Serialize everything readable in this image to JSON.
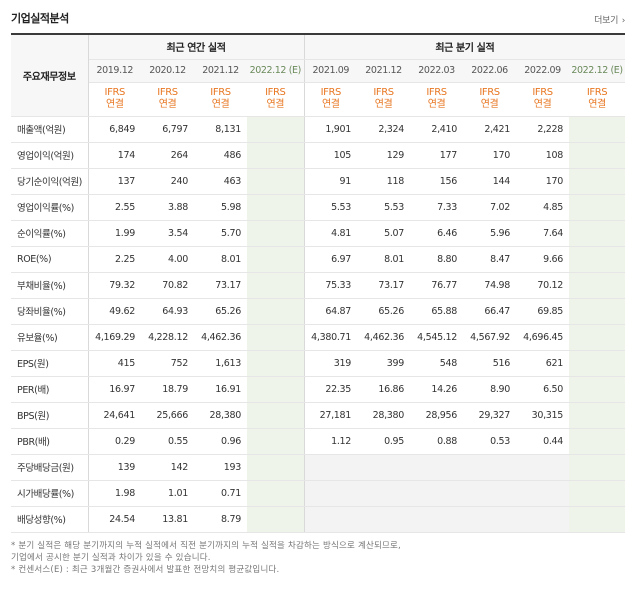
{
  "header": {
    "title": "기업실적분석",
    "more_label": "더보기",
    "more_icon": "chevron-right-icon"
  },
  "table": {
    "row_header_label": "주요재무정보",
    "annual_label": "최근 연간 실적",
    "quarter_label": "최근 분기 실적",
    "annual_periods": [
      "2019.12",
      "2020.12",
      "2021.12",
      "2022.12 (E)"
    ],
    "quarter_periods": [
      "2021.09",
      "2021.12",
      "2022.03",
      "2022.06",
      "2022.09",
      "2022.12 (E)"
    ],
    "ifrs_top": "IFRS",
    "ifrs_bottom": "연결",
    "rows": [
      {
        "label": "매출액(억원)",
        "annual": [
          "6,849",
          "6,797",
          "8,131",
          ""
        ],
        "quarter": [
          "1,901",
          "2,324",
          "2,410",
          "2,421",
          "2,228",
          ""
        ]
      },
      {
        "label": "영업이익(억원)",
        "annual": [
          "174",
          "264",
          "486",
          ""
        ],
        "quarter": [
          "105",
          "129",
          "177",
          "170",
          "108",
          ""
        ]
      },
      {
        "label": "당기순이익(억원)",
        "annual": [
          "137",
          "240",
          "463",
          ""
        ],
        "quarter": [
          "91",
          "118",
          "156",
          "144",
          "170",
          ""
        ]
      },
      {
        "label": "영업이익률(%)",
        "annual": [
          "2.55",
          "3.88",
          "5.98",
          ""
        ],
        "quarter": [
          "5.53",
          "5.53",
          "7.33",
          "7.02",
          "4.85",
          ""
        ]
      },
      {
        "label": "순이익률(%)",
        "annual": [
          "1.99",
          "3.54",
          "5.70",
          ""
        ],
        "quarter": [
          "4.81",
          "5.07",
          "6.46",
          "5.96",
          "7.64",
          ""
        ]
      },
      {
        "label": "ROE(%)",
        "annual": [
          "2.25",
          "4.00",
          "8.01",
          ""
        ],
        "quarter": [
          "6.97",
          "8.01",
          "8.80",
          "8.47",
          "9.66",
          ""
        ]
      },
      {
        "label": "부채비율(%)",
        "annual": [
          "79.32",
          "70.82",
          "73.17",
          ""
        ],
        "quarter": [
          "75.33",
          "73.17",
          "76.77",
          "74.98",
          "70.12",
          ""
        ]
      },
      {
        "label": "당좌비율(%)",
        "annual": [
          "49.62",
          "64.93",
          "65.26",
          ""
        ],
        "quarter": [
          "64.87",
          "65.26",
          "65.88",
          "66.47",
          "69.85",
          ""
        ]
      },
      {
        "label": "유보율(%)",
        "annual": [
          "4,169.29",
          "4,228.12",
          "4,462.36",
          ""
        ],
        "quarter": [
          "4,380.71",
          "4,462.36",
          "4,545.12",
          "4,567.92",
          "4,696.45",
          ""
        ]
      },
      {
        "label": "EPS(원)",
        "annual": [
          "415",
          "752",
          "1,613",
          ""
        ],
        "quarter": [
          "319",
          "399",
          "548",
          "516",
          "621",
          ""
        ]
      },
      {
        "label": "PER(배)",
        "annual": [
          "16.97",
          "18.79",
          "16.91",
          ""
        ],
        "quarter": [
          "22.35",
          "16.86",
          "14.26",
          "8.90",
          "6.50",
          ""
        ]
      },
      {
        "label": "BPS(원)",
        "annual": [
          "24,641",
          "25,666",
          "28,380",
          ""
        ],
        "quarter": [
          "27,181",
          "28,380",
          "28,956",
          "29,327",
          "30,315",
          ""
        ]
      },
      {
        "label": "PBR(배)",
        "annual": [
          "0.29",
          "0.55",
          "0.96",
          ""
        ],
        "quarter": [
          "1.12",
          "0.95",
          "0.88",
          "0.53",
          "0.44",
          ""
        ]
      },
      {
        "label": "주당배당금(원)",
        "annual": [
          "139",
          "142",
          "193",
          ""
        ],
        "quarter": [
          "",
          "",
          "",
          "",
          "",
          ""
        ]
      },
      {
        "label": "시가배당률(%)",
        "annual": [
          "1.98",
          "1.01",
          "0.71",
          ""
        ],
        "quarter": [
          "",
          "",
          "",
          "",
          "",
          ""
        ]
      },
      {
        "label": "배당성향(%)",
        "annual": [
          "24.54",
          "13.81",
          "8.79",
          ""
        ],
        "quarter": [
          "",
          "",
          "",
          "",
          "",
          ""
        ]
      }
    ]
  },
  "footnotes": [
    "* 분기 실적은 해당 분기까지의 누적 실적에서 직전 분기까지의 누적 실적을 차감하는 방식으로 계산되므로,",
    "  기업에서 공시한 분기 실적과 차이가 있을 수 있습니다.",
    "* 컨센서스(E) : 최근 3개월간 증권사에서 발표한 전망치의 평균값입니다."
  ],
  "colors": {
    "ifrs": "#e87722",
    "estimate_bg": "#eef4ea",
    "header_bg": "#f7f7f7",
    "top_border": "#3a3a3a"
  }
}
